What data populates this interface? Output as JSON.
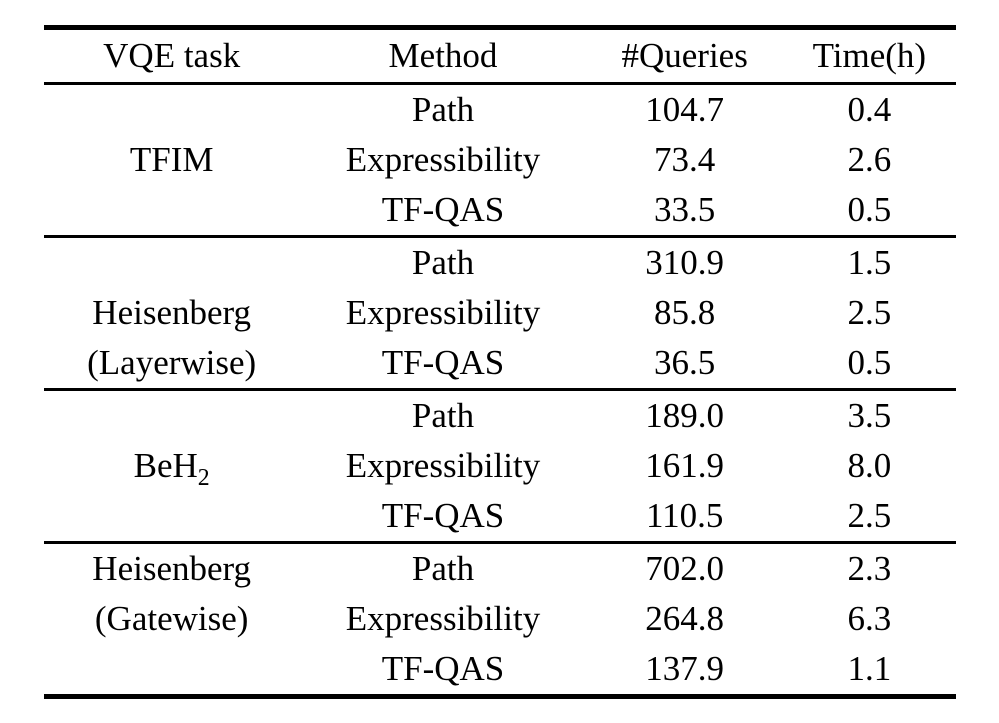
{
  "page": {
    "background_color": "#ffffff",
    "text_color": "#000000",
    "rule_color": "#000000"
  },
  "table": {
    "headers": {
      "task": "VQE task",
      "method": "Method",
      "queries": "#Queries",
      "time": "Time(h)"
    },
    "groups": [
      {
        "task": "TFIM",
        "task_cells": [
          "",
          "TFIM",
          ""
        ],
        "rows": [
          {
            "method": "Path",
            "queries": "104.7",
            "time": "0.4"
          },
          {
            "method": "Expressibility",
            "queries": "73.4",
            "time": "2.6"
          },
          {
            "method": "TF-QAS",
            "queries": "33.5",
            "time": "0.5"
          }
        ]
      },
      {
        "task": "Heisenberg (Layerwise)",
        "task_cells": [
          "",
          "Heisenberg",
          "(Layerwise)"
        ],
        "rows": [
          {
            "method": "Path",
            "queries": "310.9",
            "time": "1.5"
          },
          {
            "method": "Expressibility",
            "queries": "85.8",
            "time": "2.5"
          },
          {
            "method": "TF-QAS",
            "queries": "36.5",
            "time": "0.5"
          }
        ]
      },
      {
        "task": "BeH2",
        "task_main": "BeH",
        "task_subscript": "2",
        "task_cells": [
          "",
          "BeH",
          ""
        ],
        "rows": [
          {
            "method": "Path",
            "queries": "189.0",
            "time": "3.5"
          },
          {
            "method": "Expressibility",
            "queries": "161.9",
            "time": "8.0"
          },
          {
            "method": "TF-QAS",
            "queries": "110.5",
            "time": "2.5"
          }
        ]
      },
      {
        "task": "Heisenberg (Gatewise)",
        "task_cells": [
          "Heisenberg",
          "(Gatewise)",
          ""
        ],
        "rows": [
          {
            "method": "Path",
            "queries": "702.0",
            "time": "2.3"
          },
          {
            "method": "Expressibility",
            "queries": "264.8",
            "time": "6.3"
          },
          {
            "method": "TF-QAS",
            "queries": "137.9",
            "time": "1.1"
          }
        ]
      }
    ]
  }
}
